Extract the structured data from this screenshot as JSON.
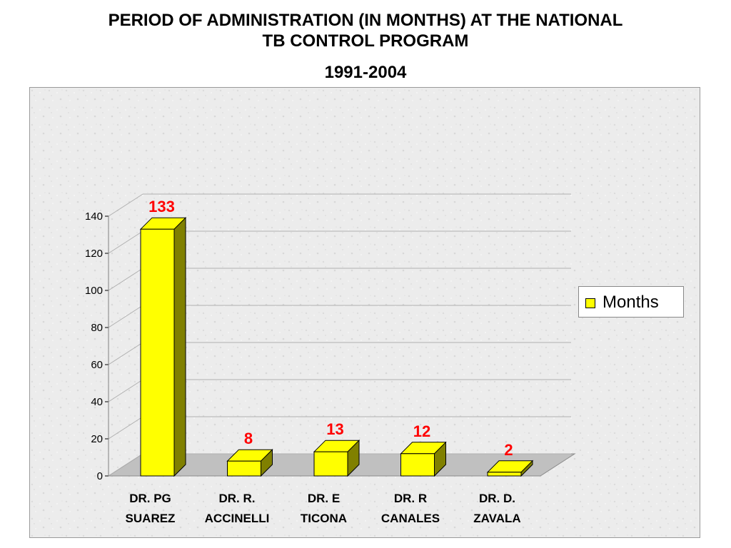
{
  "title": {
    "line1": "PERIOD OF ADMINISTRATION (IN MONTHS) AT THE NATIONAL",
    "line2": "TB CONTROL PROGRAM",
    "subtitle": "1991-2004"
  },
  "colors": {
    "bar_front": "#ffff00",
    "bar_side": "#808000",
    "data_label": "#ff0000",
    "floor": "#c0c0c0",
    "gridline": "#b0b0b0"
  },
  "chart_data": {
    "type": "bar",
    "style": "3d-column",
    "categories": [
      [
        "DR. PG",
        "SUAREZ"
      ],
      [
        "DR. R.",
        "ACCINELLI"
      ],
      [
        "DR. E",
        "TICONA"
      ],
      [
        "DR. R",
        "CANALES"
      ],
      [
        "DR. D.",
        "ZAVALA"
      ]
    ],
    "series": [
      {
        "name": "Months",
        "values": [
          133,
          8,
          13,
          12,
          2
        ]
      }
    ],
    "data_labels": [
      "133",
      "8",
      "13",
      "12",
      "2"
    ],
    "ylim": [
      0,
      140
    ],
    "yticks": [
      0,
      20,
      40,
      60,
      80,
      100,
      120,
      140
    ],
    "grid": true,
    "legend_position": "right"
  }
}
